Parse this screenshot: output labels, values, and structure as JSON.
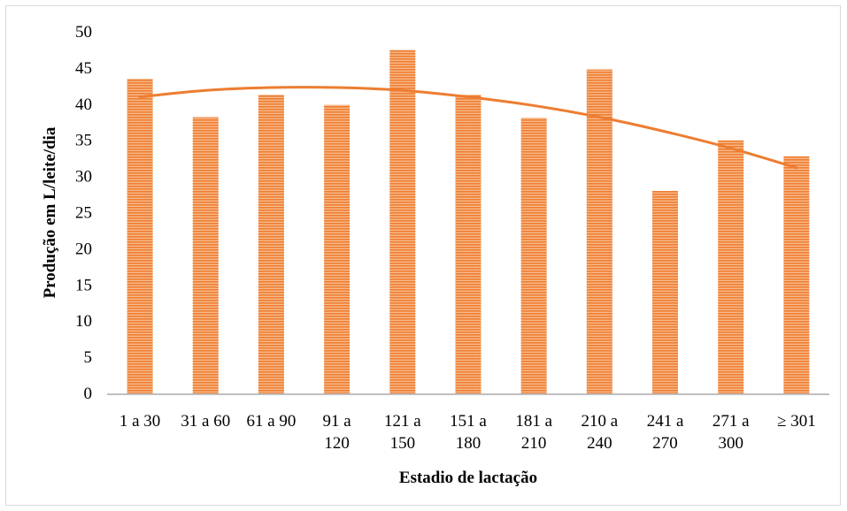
{
  "chart_data": {
    "type": "bar",
    "categories": [
      [
        "1 a 30"
      ],
      [
        "31 a 60"
      ],
      [
        "61 a 90"
      ],
      [
        "91 a",
        "120"
      ],
      [
        "121 a",
        "150"
      ],
      [
        "151 a",
        "180"
      ],
      [
        "181 a",
        "210"
      ],
      [
        "210 a",
        "240"
      ],
      [
        "241 a",
        "270"
      ],
      [
        "271 a",
        "300"
      ],
      [
        "≥ 301"
      ]
    ],
    "values": [
      43.5,
      38.2,
      41.3,
      39.9,
      47.5,
      41.3,
      38.1,
      44.8,
      28.0,
      35.0,
      32.8
    ],
    "trendline": {
      "type": "polynomial",
      "values": [
        41.0,
        41.9,
        42.3,
        42.3,
        41.9,
        41.0,
        39.8,
        38.2,
        36.2,
        33.9,
        31.2
      ]
    },
    "xlabel": "Estadio de lactação",
    "ylabel": "Produção em L/leite/dia",
    "ylim": [
      0,
      50
    ],
    "yticks": [
      0,
      5,
      10,
      15,
      20,
      25,
      30,
      35,
      40,
      45,
      50
    ],
    "grid": false,
    "legend": "none",
    "colors": {
      "bar_fill": "#f4a46a",
      "bar_stripe": "#ee7d31",
      "trendline": "#ed7d31",
      "axis": "#bfbfbf"
    }
  }
}
